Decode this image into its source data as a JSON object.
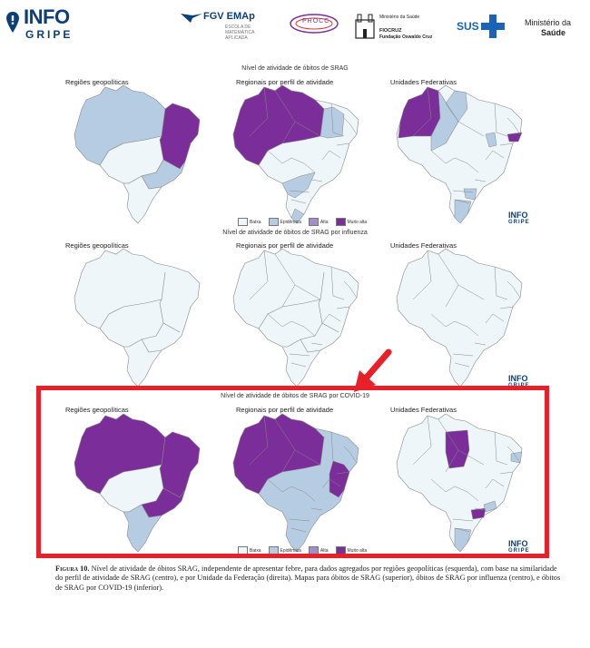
{
  "header": {
    "infogripe": {
      "top": "INFO",
      "bottom": "GRIPE"
    },
    "fgv": {
      "main": "FGV EMAp",
      "sub": [
        "ESCOLA DE",
        "MATEMÁTICA",
        "APLICADA"
      ]
    },
    "procc": "PROCC",
    "fiocruz": {
      "ministry": "Ministério da Saúde",
      "name": "FIOCRUZ",
      "sub": "Fundação Oswaldo Cruz"
    },
    "sus": "SUS",
    "ministerio": {
      "line1": "Ministério da",
      "line2": "Saúde"
    }
  },
  "sections": [
    {
      "title": "Nível de atividade de óbitos de SRAG",
      "labels": [
        "Regiões geopolíticas",
        "Regionais por perfil de atividade",
        "Unidades Federativas"
      ]
    },
    {
      "title": "Nível de atividade de óbitos de SRAG por influenza",
      "labels": [
        "Regiões geopolíticas",
        "Regionais por perfil de atividade",
        "Unidades Federativas"
      ]
    },
    {
      "title": "Nível de atividade de óbitos de SRAG por COVID-19",
      "labels": [
        "Regiões geopolíticas",
        "Regionais por perfil de atividade",
        "Unidades Federativas"
      ]
    }
  ],
  "legend": {
    "baixa": "Baixa",
    "epidemica": "Epidêmica",
    "alta": "Alta",
    "muito_alta": "Muito alta"
  },
  "watermark": {
    "top": "INFO",
    "bottom": "GRIPE"
  },
  "colors": {
    "baixa": "#eef6f9",
    "epidemica": "#b6cce2",
    "alta": "#a58ccd",
    "muito_alta": "#7b2d9a",
    "highlight": "#e8202a",
    "brand": "#0b3f7a"
  },
  "caption": {
    "label": "Figura 10.",
    "text": " Nível de atividade de óbitos SRAG, independente de apresentar febre, para dados agregados por regiões geopolíticas (esquerda), com base na similaridade do perfil de atividade de SRAG (centro), e por Unidade da Federação (direita). Mapas para óbitos de SRAG (superior), óbitos de SRAG por influenza (centro), e óbitos de SRAG por COVID-19 (inferior)."
  }
}
